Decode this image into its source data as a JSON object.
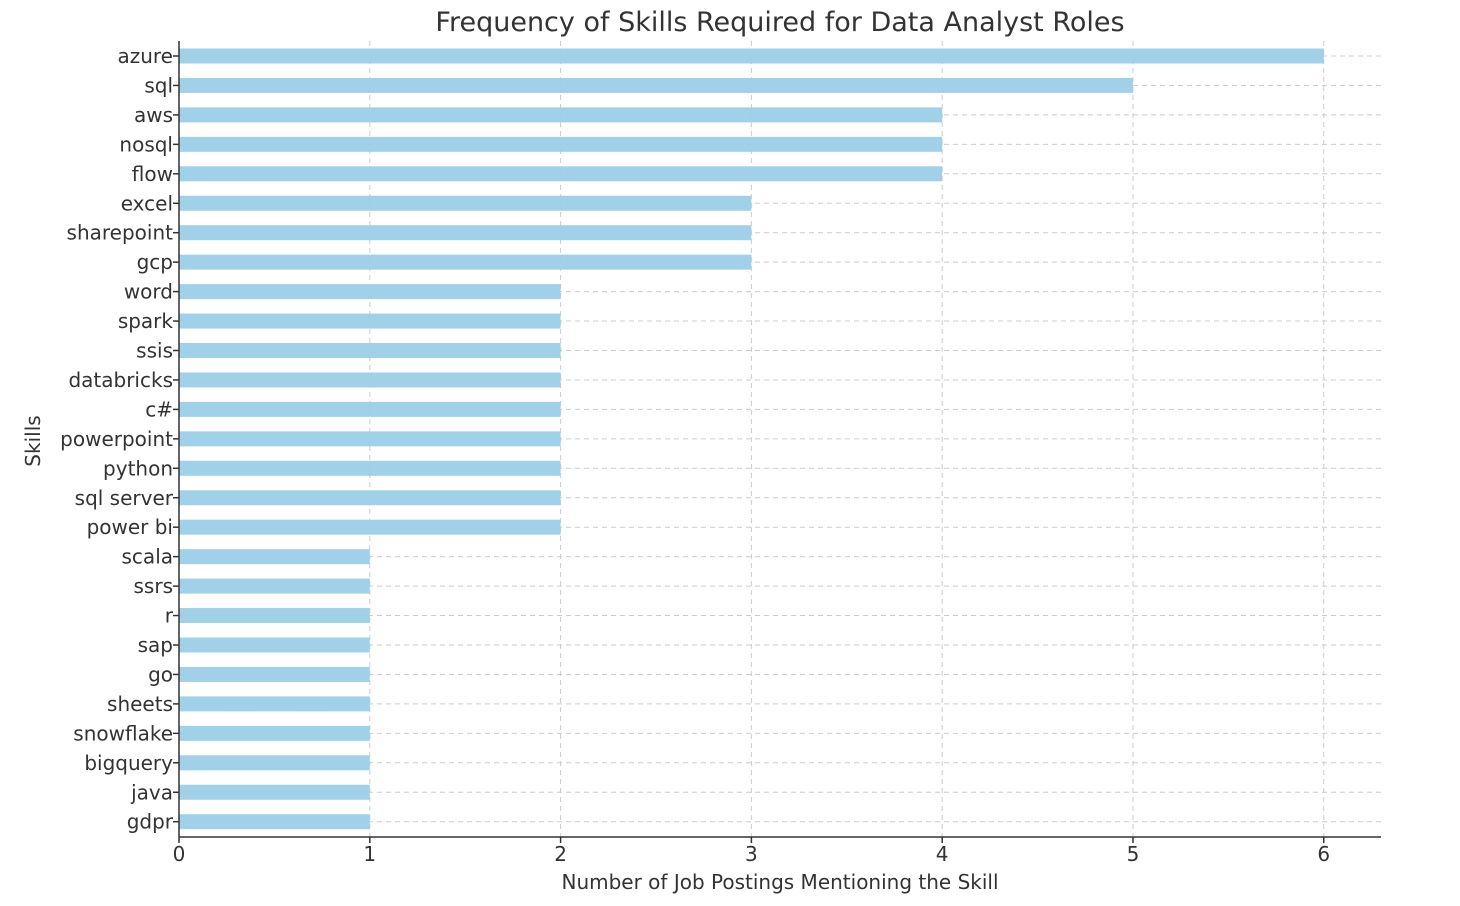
{
  "chart_data": {
    "type": "bar",
    "orientation": "horizontal",
    "title": "Frequency of Skills Required for Data Analyst Roles",
    "xlabel": "Number of Job Postings Mentioning the Skill",
    "ylabel": "Skills",
    "categories": [
      "azure",
      "sql",
      "aws",
      "nosql",
      "flow",
      "excel",
      "sharepoint",
      "gcp",
      "word",
      "spark",
      "ssis",
      "databricks",
      "c#",
      "powerpoint",
      "python",
      "sql server",
      "power bi",
      "scala",
      "ssrs",
      "r",
      "sap",
      "go",
      "sheets",
      "snowflake",
      "bigquery",
      "java",
      "gdpr"
    ],
    "values": [
      6,
      5,
      4,
      4,
      4,
      3,
      3,
      3,
      2,
      2,
      2,
      2,
      2,
      2,
      2,
      2,
      2,
      1,
      1,
      1,
      1,
      1,
      1,
      1,
      1,
      1,
      1
    ],
    "xlim": [
      0,
      6.3
    ],
    "xticks": [
      "0",
      "1",
      "2",
      "3",
      "4",
      "5",
      "6"
    ],
    "bar_color": "#9ccfe8",
    "grid": true,
    "legend": "none"
  }
}
